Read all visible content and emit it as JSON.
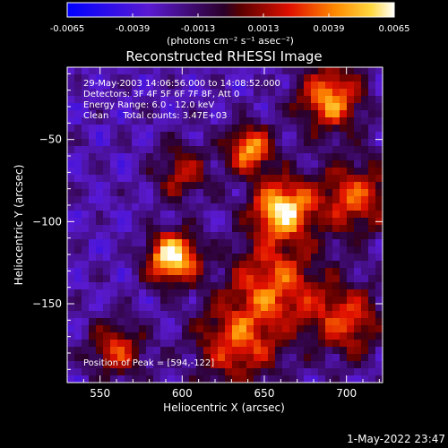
{
  "colorbar": {
    "ticks": [
      "-0.0065",
      "-0.0039",
      "-0.0013",
      "0.0013",
      "0.0039",
      "0.0065"
    ],
    "units": "(photons cm⁻² s⁻¹ asec⁻²)",
    "range": [
      -0.0065,
      0.0065
    ]
  },
  "chart_data": {
    "type": "heatmap",
    "title": "Reconstructed RHESSI Image",
    "xlabel": "Heliocentric X (arcsec)",
    "ylabel": "Heliocentric Y (arcsec)",
    "xlim": [
      530,
      722
    ],
    "ylim": [
      -198,
      -6
    ],
    "xticks": [
      550,
      600,
      650,
      700
    ],
    "yticks": [
      -50,
      -100,
      -150
    ],
    "annotations": [
      "29-May-2003 14:06:56.000 to 14:08:52.000",
      "Detectors: 3F 4F 5F 6F 7F 8F, Att 0",
      "Energy Range: 6.0 - 12.0 keV",
      "Clean     Total counts: 3.47E+03"
    ],
    "peak_label": "Position of Peak = [594,-122]",
    "peak": [
      594,
      -122
    ],
    "sources": [
      {
        "x": 594,
        "y": -122,
        "v": 0.0066,
        "sigma": 11
      },
      {
        "x": 661,
        "y": -92,
        "v": 0.0058,
        "sigma": 13
      },
      {
        "x": 641,
        "y": -56,
        "v": 0.0046,
        "sigma": 10
      },
      {
        "x": 690,
        "y": -25,
        "v": 0.0043,
        "sigma": 14
      },
      {
        "x": 656,
        "y": -138,
        "v": 0.003,
        "sigma": 20
      },
      {
        "x": 705,
        "y": -85,
        "v": 0.003,
        "sigma": 16
      },
      {
        "x": 560,
        "y": -178,
        "v": 0.0024,
        "sigma": 12
      },
      {
        "x": 633,
        "y": -175,
        "v": 0.0026,
        "sigma": 18
      },
      {
        "x": 700,
        "y": -160,
        "v": 0.0024,
        "sigma": 16
      },
      {
        "x": 600,
        "y": -70,
        "v": 0.0016,
        "sigma": 12
      }
    ]
  },
  "footer": {
    "date": "1-May-2022 23:47"
  }
}
